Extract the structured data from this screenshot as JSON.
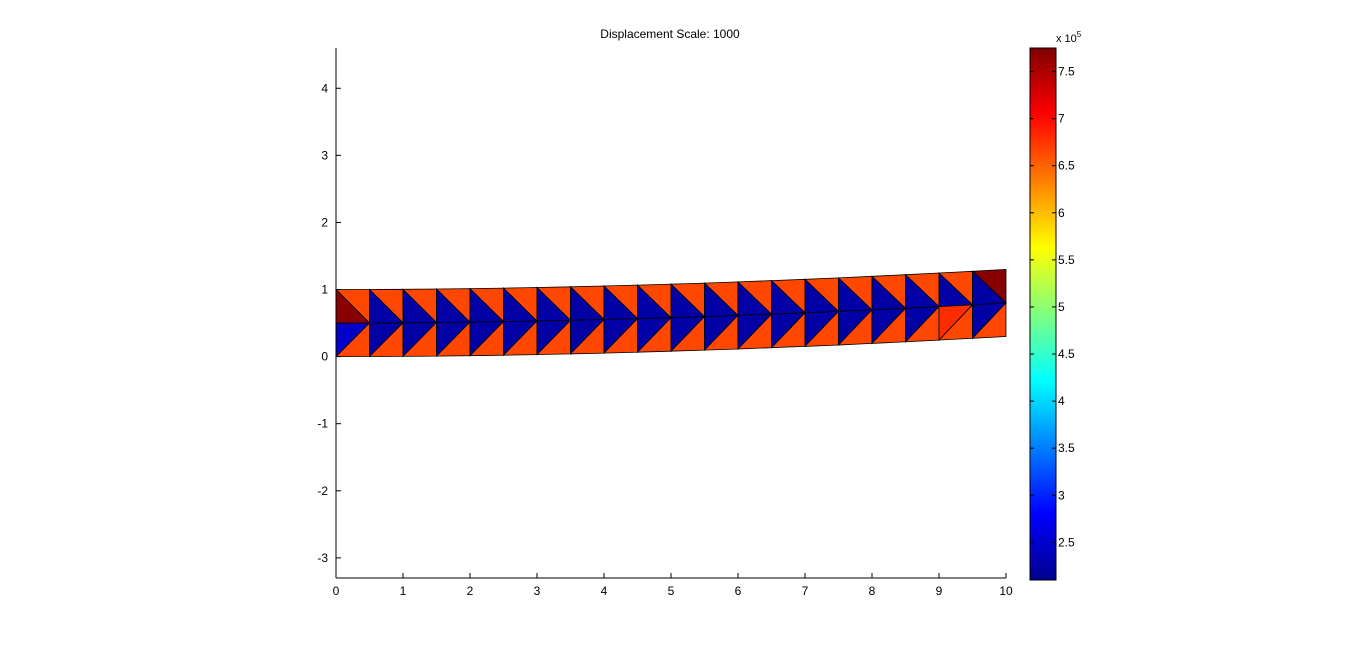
{
  "chart_data": {
    "type": "mesh",
    "title": "Displacement Scale: 1000",
    "xlim": [
      0,
      10
    ],
    "ylim": [
      -3.3,
      4.6
    ],
    "xticks": [
      "0",
      "1",
      "2",
      "3",
      "4",
      "5",
      "6",
      "7",
      "8",
      "9",
      "10"
    ],
    "yticks": [
      "-3",
      "-2",
      "-1",
      "0",
      "1",
      "2",
      "3",
      "4"
    ],
    "grid": false,
    "mesh": {
      "columns": 20,
      "element_width": 0.5,
      "rows_y": [
        0,
        0.5,
        1
      ],
      "tip_deflection": 0.3,
      "deflection_exponent": 1.9
    },
    "element_values": [
      {
        "col": 0,
        "tri": "upper-left",
        "value": 7.7
      },
      {
        "col": 0,
        "tri": "lower-right",
        "value": 2.5
      },
      {
        "col": 19,
        "tri": "upper-right",
        "value": 7.7
      },
      {
        "col": 18,
        "tri": "lower-right",
        "value": 6.8
      }
    ],
    "default_high_value": 6.65,
    "default_low_value": 2.3,
    "colorbar": {
      "min": 2.1,
      "max": 7.75,
      "ticks": [
        "2.5",
        "3",
        "3.5",
        "4",
        "4.5",
        "5",
        "5.5",
        "6",
        "6.5",
        "7",
        "7.5"
      ],
      "exponent_label": "x 10",
      "exponent_power": "5",
      "colormap": "jet"
    }
  }
}
